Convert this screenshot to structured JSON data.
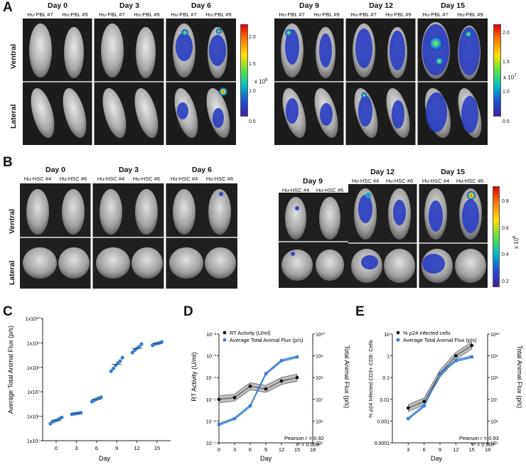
{
  "figure": {
    "panel_letters": [
      "A",
      "B",
      "C",
      "D",
      "E"
    ],
    "row_labels": {
      "ventral": "Ventral",
      "lateral": "Lateral"
    },
    "A": {
      "days": [
        "Day 0",
        "Day 3",
        "Day 6",
        "Day 9",
        "Day 12",
        "Day 15"
      ],
      "mice": [
        "Hu-PBL #7",
        "Hu-PBL #9"
      ],
      "colorbar1": {
        "ticks": [
          "2.0",
          "1.5",
          "1.0",
          "0.5"
        ],
        "multiplier": "x 10",
        "exponent": "6"
      },
      "colorbar2": {
        "ticks": [
          "2.0",
          "1.5",
          "1.0",
          "0.5"
        ],
        "multiplier": "x 10",
        "exponent": "7"
      }
    },
    "B": {
      "days": [
        "Day 0",
        "Day 3",
        "Day 6",
        "Day 9",
        "Day 12",
        "Day 15"
      ],
      "mice": [
        "Hu-HSC #4",
        "Hu-HSC #6"
      ],
      "colorbar": {
        "ticks": [
          "0.8",
          "0.6",
          "0.4",
          "0.2"
        ],
        "multiplier": "x 10",
        "exponent": "6"
      }
    }
  },
  "chart_data": [
    {
      "panel": "C",
      "type": "scatter",
      "xlabel": "Day",
      "ylabel": "Average Total Animal Flux (p/s)",
      "x_ticks": [
        "0",
        "3",
        "6",
        "9",
        "12",
        "15"
      ],
      "y_ticks": [
        "1x10⁵",
        "1x10⁶",
        "1x10⁷",
        "1x10⁸",
        "1x10⁹",
        "1x10¹⁰"
      ],
      "ylim": [
        100000,
        10000000000
      ],
      "y_scale": "log",
      "points": [
        {
          "day": 0,
          "values": [
            500000,
            600000,
            700000,
            800000,
            650000,
            900000
          ]
        },
        {
          "day": 3,
          "values": [
            1200000,
            1300000,
            1400000,
            1350000,
            1250000
          ]
        },
        {
          "day": 6,
          "values": [
            4000000,
            5000000,
            5500000,
            6000000,
            4500000
          ]
        },
        {
          "day": 9,
          "values": [
            70000000,
            150000000,
            250000000,
            120000000,
            180000000,
            90000000
          ]
        },
        {
          "day": 12,
          "values": [
            400000000,
            600000000,
            900000000,
            700000000,
            500000000
          ]
        },
        {
          "day": 15,
          "values": [
            800000000,
            1000000000,
            1100000000,
            900000000,
            950000000
          ]
        }
      ],
      "color": "#3b7fd0"
    },
    {
      "panel": "D",
      "type": "line",
      "xlabel": "Day",
      "ylabel_left": "RT Activity (U/ml)",
      "ylabel_right": "Total Animal Flux (p/s)",
      "x_ticks": [
        "0",
        "3",
        "6",
        "9",
        "12",
        "15",
        "18"
      ],
      "left_ticks": [
        "10⁻²",
        "10⁻³",
        "10⁻⁴",
        "10⁻⁵",
        "10⁻⁶",
        "10⁻⁷"
      ],
      "right_ticks": [
        "10¹⁰",
        "10⁹",
        "10⁸",
        "10⁷",
        "10⁶",
        "10⁵"
      ],
      "series": [
        {
          "name": "RT Activity (U/ml)",
          "color": "#111111",
          "marker": "circle",
          "x": [
            0,
            3,
            6,
            9,
            12,
            15
          ],
          "y": [
            1e-05,
            1.2e-05,
            4e-05,
            3e-05,
            7e-05,
            0.0001
          ]
        },
        {
          "name": "Average Total Animal Flux (p/s)",
          "color": "#3b7fd0",
          "marker": "square",
          "x": [
            0,
            3,
            6,
            9,
            12,
            15
          ],
          "y": [
            700000,
            1300000,
            5000000,
            150000000,
            600000000,
            900000000
          ]
        }
      ],
      "annotation": [
        "Pearson r = 0.92",
        "P = 0.009"
      ]
    },
    {
      "panel": "E",
      "type": "line",
      "xlabel": "Day",
      "ylabel_left": "% p24 Infected CD3+ CD8- Cells",
      "ylabel_right": "Total Animal Flux (p/s)",
      "x_ticks": [
        "3",
        "6",
        "9",
        "12",
        "15",
        "18"
      ],
      "left_ticks": [
        "10",
        "1",
        "0.1",
        "0.01",
        "0.001",
        "0.0001"
      ],
      "right_ticks": [
        "10¹⁰",
        "10⁹",
        "10⁸",
        "10⁷",
        "10⁶",
        "10⁵"
      ],
      "series": [
        {
          "name": "% p24 infected cells",
          "color": "#111111",
          "marker": "circle",
          "x": [
            3,
            6,
            9,
            12,
            15
          ],
          "y": [
            0.004,
            0.008,
            0.15,
            1,
            3
          ]
        },
        {
          "name": "Average Total Animal Flux (p/s)",
          "color": "#3b7fd0",
          "marker": "square",
          "x": [
            3,
            6,
            9,
            12,
            15
          ],
          "y": [
            1300000,
            5000000,
            150000000,
            600000000,
            900000000
          ]
        }
      ],
      "annotation": [
        "Pearson r = 0.93",
        "P = 0.007"
      ]
    }
  ]
}
